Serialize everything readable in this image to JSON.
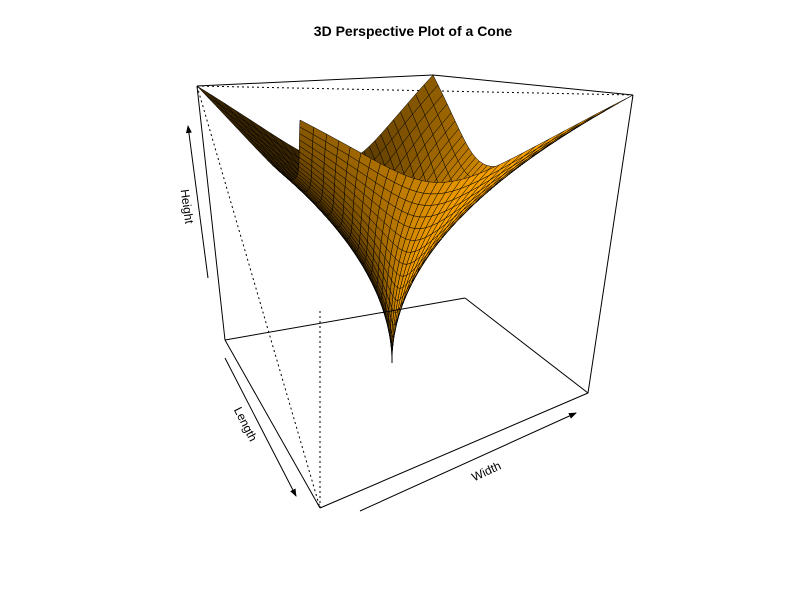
{
  "chart_data": {
    "type": "surface",
    "title": "3D Perspective Plot of a Cone",
    "xlabel": "Width",
    "ylabel": "Length",
    "zlabel": "Height",
    "function": "z = sqrt(x^2 + y^2)",
    "x_range": [
      -1,
      1
    ],
    "y_range": [
      -1,
      1
    ],
    "grid_lines_per_axis": 30,
    "surface_color": "#ffa500",
    "edge_color": "#000000",
    "shaded": true,
    "box": true,
    "axes_ticks": "none"
  }
}
